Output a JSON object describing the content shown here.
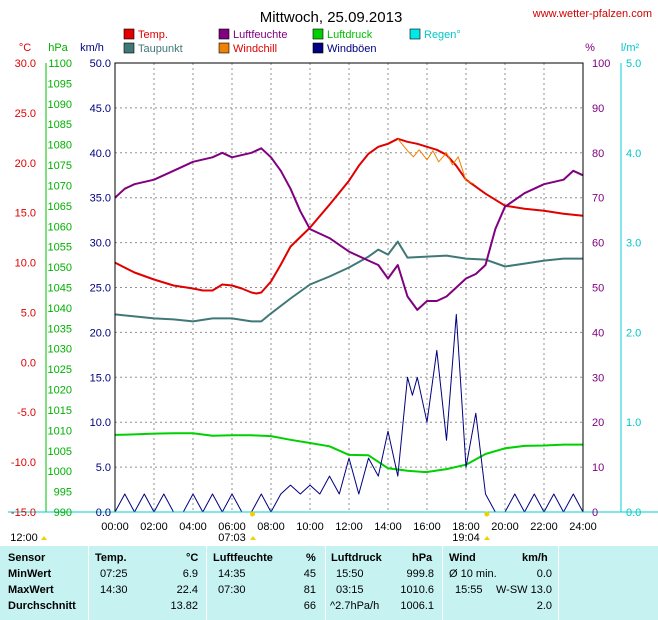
{
  "header": {
    "title": "Mittwoch, 25.09.2013",
    "site": "www.wetter-pfalzen.com"
  },
  "legend": [
    {
      "label": "Temp.",
      "color": "#e00000"
    },
    {
      "label": "Taupunkt",
      "color": "#407878"
    },
    {
      "label": "Luftfeuchte",
      "color": "#800080"
    },
    {
      "label": "Windchill",
      "color": "#f08000"
    },
    {
      "label": "Luftdruck",
      "color": "#00d000"
    },
    {
      "label": "Windböen",
      "color": "#000080"
    },
    {
      "label": "Regen°",
      "color": "#00e8e8"
    }
  ],
  "axes": {
    "temp_unit": "°C",
    "press_unit": "hPa",
    "wind_unit": "km/h",
    "hum_unit": "%",
    "rain_unit": "l/m²",
    "temp_ticks": [
      "30.0",
      "25.0",
      "20.0",
      "15.0",
      "10.0",
      "5.0",
      "0.0",
      "-5.0",
      "-10.0",
      "-15.0"
    ],
    "press_ticks": [
      "1100",
      "1095",
      "1090",
      "1085",
      "1080",
      "1075",
      "1070",
      "1065",
      "1060",
      "1055",
      "1050",
      "1045",
      "1040",
      "1035",
      "1030",
      "1025",
      "1020",
      "1015",
      "1010",
      "1005",
      "1000",
      "995",
      "990"
    ],
    "wind_ticks": [
      "50.0",
      "45.0",
      "40.0",
      "35.0",
      "30.0",
      "25.0",
      "20.0",
      "15.0",
      "10.0",
      "5.0",
      "0.0"
    ],
    "hum_ticks": [
      "100",
      "90",
      "80",
      "70",
      "60",
      "50",
      "40",
      "30",
      "20",
      "10",
      "0"
    ],
    "rain_ticks": [
      "5.0",
      "4.0",
      "3.0",
      "2.0",
      "1.0",
      "0.0"
    ],
    "x_ticks": [
      "00:00",
      "02:00",
      "04:00",
      "06:00",
      "08:00",
      "10:00",
      "12:00",
      "14:00",
      "16:00",
      "18:00",
      "20:00",
      "22:00",
      "24:00"
    ]
  },
  "sun": {
    "noon": "12:00",
    "sunrise": "07:03",
    "sunset": "19:04"
  },
  "chart_data": {
    "type": "line",
    "x_unit": "hours",
    "xlim": [
      0,
      24
    ],
    "series": [
      {
        "name": "Temp.",
        "axis": "temp",
        "color": "#e00000",
        "x": [
          0,
          1,
          2,
          3,
          4,
          4.5,
          5,
          5.5,
          6,
          6.5,
          7,
          7.25,
          7.5,
          8,
          8.5,
          9,
          10,
          11,
          12,
          12.5,
          13,
          13.5,
          14,
          14.5,
          15,
          15.5,
          16,
          16.5,
          17,
          17.5,
          18,
          18.5,
          19,
          20,
          21,
          22,
          23,
          24
        ],
        "y": [
          10.0,
          9.0,
          8.3,
          7.7,
          7.4,
          7.2,
          7.2,
          7.8,
          7.7,
          7.4,
          7.0,
          6.9,
          7.0,
          8.1,
          9.8,
          11.6,
          13.5,
          15.8,
          18.2,
          19.7,
          20.9,
          21.6,
          21.9,
          22.4,
          22.1,
          21.9,
          21.6,
          21.3,
          20.8,
          19.7,
          18.3,
          17.6,
          16.9,
          15.7,
          15.4,
          15.2,
          14.9,
          14.7
        ]
      },
      {
        "name": "Taupunkt",
        "axis": "temp",
        "color": "#407878",
        "x": [
          0,
          1,
          2,
          3,
          4,
          5,
          6,
          7,
          7.5,
          8,
          9,
          10,
          11,
          12,
          13,
          13.5,
          14,
          14.5,
          15,
          16,
          17,
          18,
          19,
          20,
          21,
          22,
          23,
          24
        ],
        "y": [
          4.8,
          4.6,
          4.4,
          4.3,
          4.1,
          4.4,
          4.4,
          4.1,
          4.1,
          4.9,
          6.4,
          7.8,
          8.6,
          9.5,
          10.6,
          11.3,
          10.8,
          12.1,
          10.5,
          10.6,
          10.7,
          10.4,
          10.3,
          9.6,
          9.9,
          10.2,
          10.4,
          10.4
        ]
      },
      {
        "name": "Luftfeuchte",
        "axis": "hum",
        "color": "#800080",
        "x": [
          0,
          0.5,
          1,
          2,
          3,
          4,
          5,
          5.5,
          6,
          7,
          7.5,
          8,
          8.5,
          9,
          9.5,
          10,
          11,
          12,
          13,
          13.5,
          14,
          14.5,
          15,
          15.5,
          16,
          16.5,
          17,
          17.5,
          18,
          18.5,
          19,
          19.5,
          20,
          21,
          22,
          23,
          23.5,
          24
        ],
        "y": [
          70,
          72,
          73,
          74,
          76,
          78,
          79,
          80,
          79,
          80,
          81,
          79,
          76,
          72,
          67,
          63,
          61,
          58,
          56,
          55,
          52,
          55,
          48,
          45,
          47,
          47,
          48,
          50,
          52,
          53,
          55,
          63,
          68,
          71,
          73,
          74,
          76,
          75
        ]
      },
      {
        "name": "Windchill",
        "axis": "temp",
        "color": "#f08000",
        "x": [
          14.5,
          15,
          15.3,
          15.6,
          16,
          16.3,
          16.6,
          17,
          17.3,
          17.6,
          18,
          18.4
        ],
        "y": [
          22.4,
          21.2,
          20.6,
          21.3,
          20.3,
          21.2,
          20.1,
          21.0,
          19.8,
          20.6,
          18.2,
          17.9
        ]
      },
      {
        "name": "Luftdruck",
        "axis": "press",
        "color": "#00d000",
        "x": [
          0,
          1,
          2,
          3,
          4,
          5,
          6,
          7,
          8,
          9,
          10,
          11,
          12,
          13,
          14,
          15,
          15.83,
          16,
          17,
          18,
          19,
          20,
          21,
          22,
          23,
          24
        ],
        "y": [
          1008.9,
          1009.0,
          1009.2,
          1009.3,
          1009.3,
          1008.7,
          1008.8,
          1008.8,
          1008.6,
          1007.7,
          1006.9,
          1006.1,
          1004.0,
          1003.9,
          1000.7,
          1000.1,
          999.8,
          999.8,
          1000.5,
          1001.6,
          1004.2,
          1005.6,
          1006.2,
          1006.3,
          1006.5,
          1006.5
        ]
      },
      {
        "name": "Windböen",
        "axis": "wind",
        "color": "#000080",
        "x": [
          0,
          0.5,
          1,
          1.5,
          2,
          2.5,
          3,
          3.5,
          4,
          4.5,
          5,
          5.5,
          6,
          6.5,
          7,
          7.5,
          8,
          8.5,
          9,
          9.5,
          10,
          10.5,
          11,
          11.5,
          12,
          12.5,
          13,
          13.5,
          14,
          14.5,
          15,
          15.25,
          15.5,
          16,
          16.5,
          17,
          17.5,
          18,
          18.5,
          19,
          19.5,
          20,
          20.5,
          21,
          21.5,
          22,
          22.5,
          23,
          23.5,
          24
        ],
        "y": [
          0,
          2,
          0,
          2,
          0,
          2,
          0,
          0,
          2,
          0,
          2,
          0,
          2,
          0,
          0,
          2,
          0,
          2,
          3,
          2,
          3,
          2,
          4,
          2,
          6,
          2,
          6,
          4,
          9,
          4,
          15,
          13,
          15,
          10,
          18,
          8,
          22,
          5,
          11,
          2,
          0,
          0,
          2,
          0,
          2,
          0,
          2,
          0,
          2,
          0
        ]
      }
    ]
  },
  "stats": {
    "headers": {
      "sensor": "Sensor",
      "temp": "Temp.",
      "temp_unit": "°C",
      "hum": "Luftfeuchte",
      "hum_unit": "%",
      "press": "Luftdruck",
      "press_unit": "hPa",
      "wind": "Wind",
      "wind_unit": "km/h"
    },
    "rows": [
      {
        "label": "MinWert",
        "temp_time": "07:25",
        "temp_val": "6.9",
        "hum_time": "14:35",
        "hum_val": "45",
        "press_time": "15:50",
        "press_val": "999.8",
        "wind_time": "Ø 10 min.",
        "wind_val": "0.0"
      },
      {
        "label": "MaxWert",
        "temp_time": "14:30",
        "temp_val": "22.4",
        "hum_time": "07:30",
        "hum_val": "81",
        "press_time": "03:15",
        "press_val": "1010.6",
        "wind_time": "15:55",
        "wind_val": "W-SW 13.0"
      },
      {
        "label": "Durchschnitt",
        "temp_time": "",
        "temp_val": "13.82",
        "hum_time": "",
        "hum_val": "66",
        "press_time": "^2.7hPa/h",
        "press_val": "1006.1",
        "wind_time": "",
        "wind_val": "2.0"
      }
    ]
  }
}
